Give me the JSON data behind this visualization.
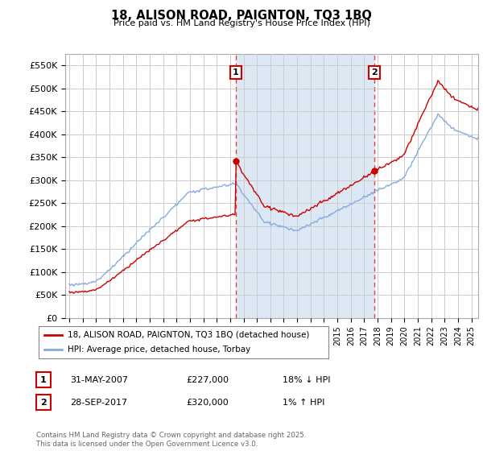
{
  "title": "18, ALISON ROAD, PAIGNTON, TQ3 1BQ",
  "subtitle": "Price paid vs. HM Land Registry's House Price Index (HPI)",
  "ylabel_ticks": [
    "£0",
    "£50K",
    "£100K",
    "£150K",
    "£200K",
    "£250K",
    "£300K",
    "£350K",
    "£400K",
    "£450K",
    "£500K",
    "£550K"
  ],
  "ytick_values": [
    0,
    50000,
    100000,
    150000,
    200000,
    250000,
    300000,
    350000,
    400000,
    450000,
    500000,
    550000
  ],
  "ylim": [
    0,
    575000
  ],
  "xlim_start": 1994.7,
  "xlim_end": 2025.5,
  "sale1": {
    "date_label": "31-MAY-2007",
    "price": 227000,
    "year": 2007.42,
    "label": "1",
    "hpi_pct": "18% ↓ HPI"
  },
  "sale2": {
    "date_label": "28-SEP-2017",
    "price": 320000,
    "year": 2017.75,
    "label": "2",
    "hpi_pct": "1% ↑ HPI"
  },
  "legend_line1": "18, ALISON ROAD, PAIGNTON, TQ3 1BQ (detached house)",
  "legend_line2": "HPI: Average price, detached house, Torbay",
  "footer": "Contains HM Land Registry data © Crown copyright and database right 2025.\nThis data is licensed under the Open Government Licence v3.0.",
  "line_color_sale": "#cc0000",
  "line_color_hpi": "#88aadd",
  "fill_color": "#dde8f5",
  "dashed_vline_color": "#dd4444",
  "bg_color": "#ffffff",
  "grid_color": "#cccccc",
  "xtick_years": [
    1995,
    1996,
    1997,
    1998,
    1999,
    2000,
    2001,
    2002,
    2003,
    2004,
    2005,
    2006,
    2007,
    2008,
    2009,
    2010,
    2011,
    2012,
    2013,
    2014,
    2015,
    2016,
    2017,
    2018,
    2019,
    2020,
    2021,
    2022,
    2023,
    2024,
    2025
  ]
}
